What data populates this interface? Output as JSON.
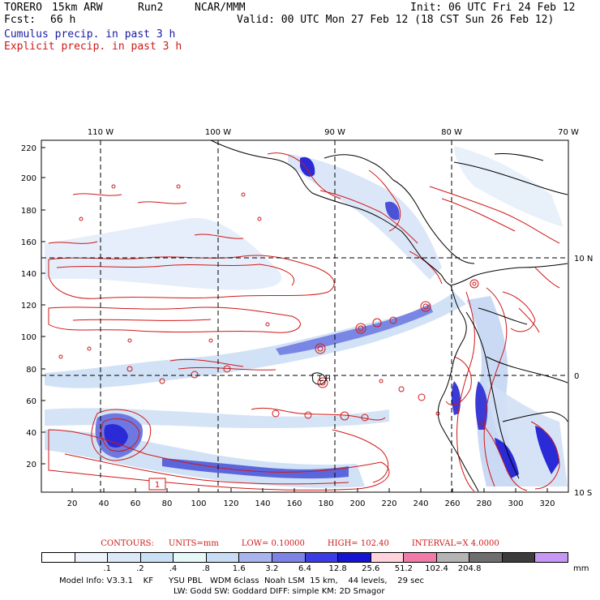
{
  "header": {
    "model": "TORERO",
    "resolution": "15km ARW",
    "run": "Run2",
    "org": "NCAR/MMM",
    "init": "Init: 06 UTC Fri 24 Feb 12",
    "fcst_label": "Fcst:",
    "fcst_value": "66 h",
    "valid": "Valid: 00 UTC Mon 27 Feb 12 (18 CST Sun 26 Feb 12)",
    "cumulus_label": "Cumulus precip. in past 3 h",
    "explicit_label": "Explicit precip. in past 3 h"
  },
  "colors": {
    "cumulus_text": "#1a1aa6",
    "explicit_text": "#d01818",
    "contour": "#d01818",
    "coastline": "#000000"
  },
  "map": {
    "top_lon_labels": [
      "110 W",
      "100 W",
      "90 W",
      "80 W",
      "70 W"
    ],
    "right_lat_labels": [
      "10 N",
      "0",
      "10 S"
    ],
    "left_ticks": [
      "220",
      "200",
      "180",
      "160",
      "140",
      "120",
      "100",
      "80",
      "60",
      "40",
      "20"
    ],
    "bottom_ticks": [
      "20",
      "40",
      "60",
      "80",
      "100",
      "120",
      "140",
      "160",
      "180",
      "200",
      "220",
      "240",
      "260",
      "280",
      "300",
      "320"
    ],
    "high_marker": "1",
    "low_marker_L": "L",
    "low_marker_H": "H"
  },
  "contours_info": {
    "label": "CONTOURS:",
    "units": "UNITS=mm",
    "low": "LOW= 0.10000",
    "high": "HIGH= 102.40",
    "interval": "INTERVAL=X 4.0000"
  },
  "colorbar": {
    "colors": [
      "#ffffff",
      "#eef2fb",
      "#dbe8f7",
      "#c9e0f5",
      "#e6f7f7",
      "#c8dcf5",
      "#a8b4ee",
      "#7d82e6",
      "#3c3ce6",
      "#1414d2",
      "#ffd2dc",
      "#f07aa8",
      "#b4b4b4",
      "#6e6e6e",
      "#3c3c3c",
      "#c896f5"
    ],
    "labels": [
      ".1",
      ".2",
      ".4",
      ".8",
      "1.6",
      "3.2",
      "6.4",
      "12.8",
      "25.6",
      "51.2",
      "102.4",
      "204.8"
    ],
    "units": "mm"
  },
  "footer": {
    "line1": "Model Info: V3.3.1    KF      YSU PBL   WDM 6class  Noah LSM  15 km,    44 levels,    29 sec",
    "line2": "LW: Godd SW: Goddard DIFF: simple KM: 2D Smagor"
  }
}
